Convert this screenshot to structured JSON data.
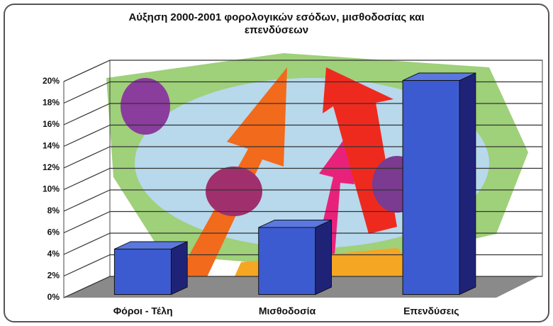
{
  "chart_data": {
    "type": "bar3d",
    "title": "Αύξηση 2000-2001 φορολογικών εσόδων, μισθοδοσίας και επενδύσεων",
    "categories": [
      "Φόροι - Τέλη",
      "Μισθοδοσία",
      "Επενδύσεις"
    ],
    "values": [
      4.2,
      6.2,
      19.8
    ],
    "color": "#3d5bd0",
    "ylim": [
      0,
      20
    ],
    "yticks": [
      {
        "value": 0,
        "label": "0%"
      },
      {
        "value": 2,
        "label": "2%"
      },
      {
        "value": 4,
        "label": "4%"
      },
      {
        "value": 6,
        "label": "6%"
      },
      {
        "value": 8,
        "label": "8%"
      },
      {
        "value": 10,
        "label": "10%"
      },
      {
        "value": 12,
        "label": "12%"
      },
      {
        "value": 14,
        "label": "14%"
      },
      {
        "value": 16,
        "label": "16%"
      },
      {
        "value": 18,
        "label": "18%"
      },
      {
        "value": 20,
        "label": "20%"
      }
    ],
    "grid": true
  }
}
